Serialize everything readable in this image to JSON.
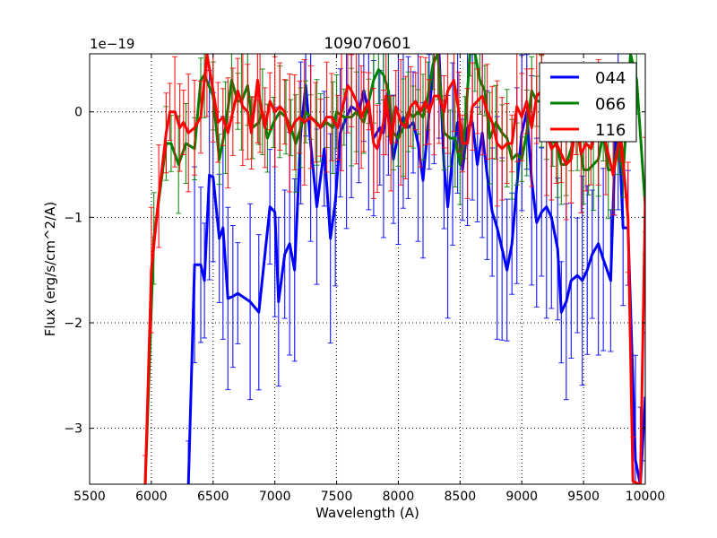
{
  "chart_data": {
    "type": "line",
    "title": "109070601",
    "xlabel": "Wavelength (A)",
    "ylabel": "Flux (erg/s/cm^2/A)",
    "offset_text": "1e−19",
    "xlim": [
      5500,
      10000
    ],
    "ylim": [
      -3.53,
      0.55
    ],
    "xticks": [
      5500,
      6000,
      6500,
      7000,
      7500,
      8000,
      8500,
      9000,
      9500,
      10000
    ],
    "xtick_labels": [
      "5500",
      "6000",
      "6500",
      "7000",
      "7500",
      "8000",
      "8500",
      "9000",
      "9500",
      "10000"
    ],
    "yticks": [
      0,
      -1,
      -2,
      -3
    ],
    "ytick_labels": [
      "0",
      "−1",
      "−2",
      "−3"
    ],
    "grid": true,
    "legend_position": "top-right",
    "series": [
      {
        "name": "044",
        "color": "#0000ff",
        "yerr_typical": 0.8,
        "x": [
          6300,
          6350,
          6400,
          6430,
          6470,
          6500,
          6550,
          6580,
          6620,
          6660,
          6700,
          6800,
          6870,
          6960,
          7000,
          7030,
          7080,
          7120,
          7160,
          7210,
          7250,
          7290,
          7340,
          7400,
          7450,
          7490,
          7530,
          7580,
          7620,
          7680,
          7720,
          7760,
          7800,
          7850,
          7880,
          7920,
          7960,
          8000,
          8040,
          8080,
          8120,
          8160,
          8200,
          8250,
          8290,
          8330,
          8370,
          8400,
          8440,
          8480,
          8520,
          8560,
          8600,
          8640,
          8680,
          8720,
          8760,
          8800,
          8840,
          8880,
          8920,
          8960,
          9000,
          9040,
          9080,
          9120,
          9160,
          9200,
          9240,
          9290,
          9320,
          9360,
          9400,
          9450,
          9490,
          9530,
          9570,
          9620,
          9660,
          9720,
          9750,
          9780,
          9820,
          9860,
          9920,
          9960,
          10000
        ],
        "y": [
          -3.6,
          -1.45,
          -1.45,
          -1.6,
          -0.6,
          -0.62,
          -1.2,
          -1.1,
          -1.77,
          -1.75,
          -1.72,
          -1.8,
          -1.9,
          -0.9,
          -0.95,
          -1.8,
          -1.35,
          -1.25,
          -1.5,
          -0.2,
          0.25,
          -0.3,
          -0.9,
          -0.35,
          -1.2,
          -0.85,
          -0.2,
          -0.05,
          0.05,
          0.0,
          0.2,
          0.0,
          -0.25,
          -0.15,
          -0.2,
          0.2,
          -0.45,
          -0.2,
          -0.05,
          -0.15,
          -0.1,
          -0.3,
          -0.65,
          0.0,
          0.5,
          0.55,
          -0.5,
          -0.9,
          -0.4,
          -0.1,
          -0.55,
          -0.15,
          -0.1,
          -0.5,
          -0.2,
          -0.6,
          -0.95,
          -1.1,
          -1.3,
          -1.5,
          -1.25,
          -0.7,
          -0.2,
          0.0,
          -0.65,
          -1.05,
          -0.95,
          -0.9,
          -1.0,
          -1.3,
          -1.9,
          -1.8,
          -1.6,
          -1.55,
          -1.6,
          -1.5,
          -1.35,
          -1.25,
          -1.4,
          -1.6,
          -0.5,
          0.0,
          -1.1,
          -1.1,
          -3.3,
          -3.6,
          -2.7
        ]
      },
      {
        "name": "066",
        "color": "#008000",
        "yerr_typical": 0.35,
        "x": [
          5950,
          6020,
          6120,
          6160,
          6220,
          6280,
          6350,
          6400,
          6430,
          6500,
          6550,
          6600,
          6650,
          6700,
          6730,
          6780,
          6820,
          6870,
          6900,
          6940,
          6990,
          7040,
          7090,
          7130,
          7170,
          7210,
          7250,
          7290,
          7340,
          7370,
          7420,
          7470,
          7500,
          7560,
          7620,
          7660,
          7720,
          7760,
          7800,
          7840,
          7880,
          7920,
          7960,
          8000,
          8040,
          8080,
          8120,
          8160,
          8200,
          8240,
          8280,
          8320,
          8370,
          8420,
          8460,
          8500,
          8540,
          8580,
          8620,
          8660,
          8700,
          8740,
          8790,
          8840,
          8880,
          8920,
          8960,
          9000,
          9040,
          9080,
          9120,
          9160,
          9200,
          9250,
          9290,
          9320,
          9360,
          9400,
          9450,
          9500,
          9540,
          9580,
          9620,
          9660,
          9700,
          9740,
          9780,
          9820,
          9880,
          9930,
          10000
        ],
        "y": [
          -4.0,
          -1.2,
          -0.3,
          -0.3,
          -0.5,
          -0.3,
          -0.35,
          0.3,
          0.35,
          0.15,
          -0.45,
          -0.15,
          0.3,
          0.1,
          0.1,
          0.25,
          -0.15,
          -0.1,
          0.0,
          -0.25,
          -0.1,
          0.0,
          -0.05,
          -0.15,
          -0.3,
          -0.15,
          0.0,
          -0.05,
          -0.1,
          -0.15,
          -0.1,
          -0.15,
          0.0,
          -0.05,
          -0.05,
          0.0,
          -0.1,
          0.1,
          0.3,
          0.4,
          0.35,
          0.2,
          -0.2,
          -0.25,
          -0.15,
          0.0,
          -0.05,
          0.0,
          -0.05,
          0.15,
          0.45,
          0.55,
          -0.2,
          -0.25,
          -0.25,
          -0.5,
          -0.15,
          0.55,
          0.6,
          0.3,
          0.2,
          -0.25,
          -0.1,
          -0.2,
          -0.25,
          -0.45,
          -0.4,
          -0.45,
          -0.2,
          0.2,
          0.1,
          0.1,
          -0.1,
          -0.25,
          -0.35,
          -0.5,
          -0.5,
          -0.35,
          -0.15,
          -0.55,
          -0.55,
          -0.5,
          -0.45,
          -0.2,
          -0.55,
          -0.55,
          -0.3,
          -0.6,
          0.55,
          0.3,
          -0.9
        ]
      },
      {
        "name": "116",
        "color": "#ff0000",
        "yerr_typical": 0.45,
        "x": [
          5950,
          6000,
          6060,
          6120,
          6150,
          6190,
          6230,
          6260,
          6300,
          6350,
          6400,
          6450,
          6500,
          6540,
          6580,
          6620,
          6660,
          6700,
          6740,
          6780,
          6810,
          6860,
          6880,
          6920,
          6960,
          7000,
          7040,
          7080,
          7120,
          7160,
          7200,
          7240,
          7290,
          7330,
          7370,
          7420,
          7460,
          7510,
          7540,
          7590,
          7620,
          7660,
          7700,
          7720,
          7760,
          7800,
          7830,
          7880,
          7900,
          7940,
          7980,
          8020,
          8060,
          8100,
          8140,
          8180,
          8220,
          8250,
          8290,
          8330,
          8370,
          8400,
          8450,
          8490,
          8520,
          8560,
          8600,
          8640,
          8680,
          8720,
          8760,
          8800,
          8840,
          8880,
          8920,
          8960,
          9000,
          9040,
          9080,
          9120,
          9160,
          9200,
          9240,
          9280,
          9320,
          9360,
          9400,
          9440,
          9480,
          9520,
          9560,
          9620,
          9680,
          9740,
          9800,
          9860,
          9900,
          9960,
          10000
        ],
        "y": [
          -3.6,
          -1.5,
          -0.8,
          -0.2,
          0.0,
          0.0,
          -0.15,
          -0.1,
          -0.2,
          -0.15,
          -0.05,
          0.55,
          0.2,
          -0.1,
          -0.05,
          -0.2,
          0.0,
          0.2,
          0.05,
          0.0,
          -0.2,
          0.3,
          0.1,
          -0.15,
          0.1,
          0.0,
          0.05,
          0.0,
          -0.2,
          -0.1,
          -0.05,
          -0.1,
          -0.05,
          -0.1,
          -0.15,
          -0.05,
          -0.05,
          -0.15,
          0.0,
          0.25,
          0.2,
          0.1,
          -0.05,
          0.0,
          0.1,
          -0.3,
          -0.35,
          -0.1,
          0.15,
          -0.3,
          0.05,
          -0.1,
          -0.15,
          0.05,
          0.1,
          0.0,
          0.1,
          0.0,
          0.15,
          0.15,
          0.0,
          0.2,
          0.3,
          0.0,
          -0.3,
          -0.3,
          0.05,
          0.1,
          0.15,
          0.0,
          -0.1,
          -0.3,
          -0.35,
          -0.3,
          -0.3,
          0.05,
          -0.05,
          0.1,
          -0.15,
          0.15,
          0.2,
          -0.2,
          -0.35,
          -0.3,
          -0.4,
          -0.5,
          -0.45,
          -0.1,
          -0.4,
          -0.3,
          -0.35,
          -0.1,
          -0.3,
          -0.6,
          -0.2,
          -1.0,
          -3.5,
          -4.0,
          -0.8
        ]
      }
    ]
  }
}
